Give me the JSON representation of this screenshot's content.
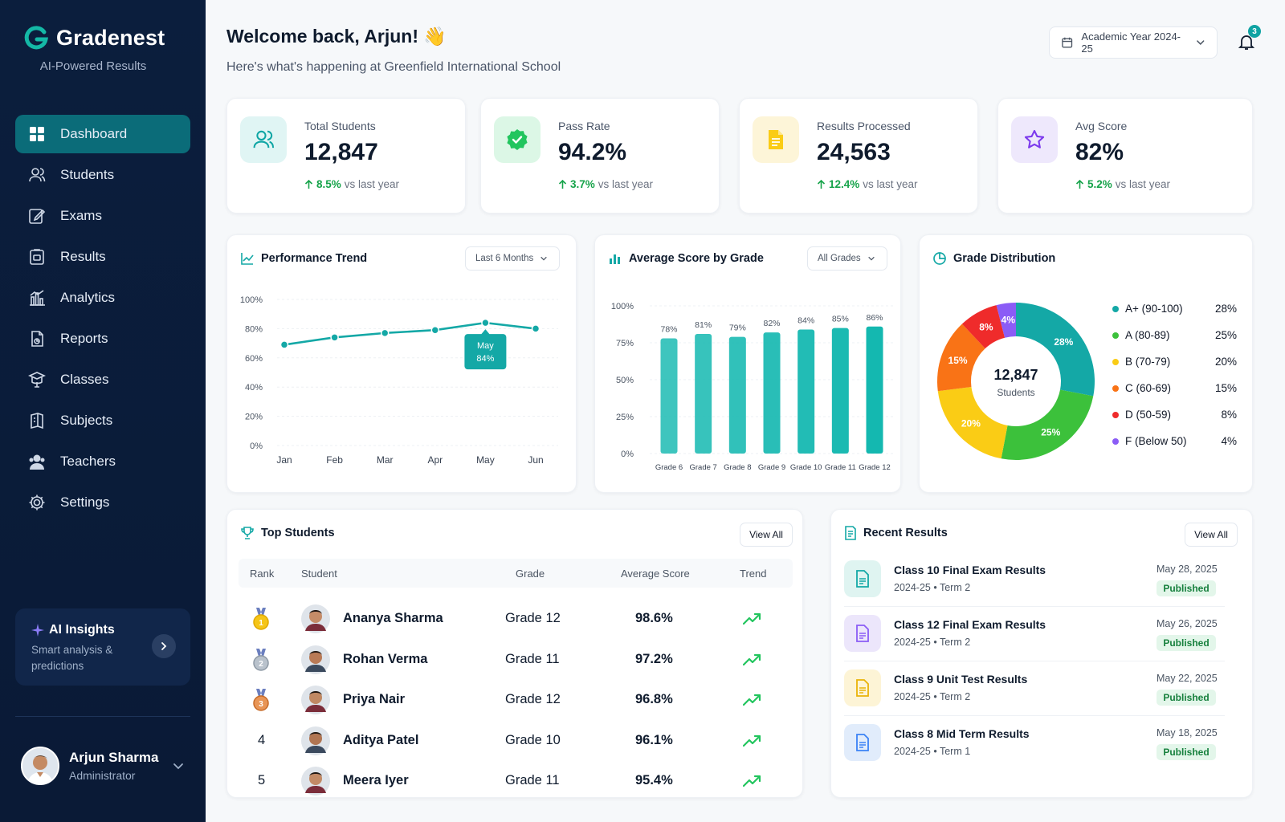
{
  "brand": {
    "name": "Gradenest",
    "tagline": "AI-Powered Results",
    "logo_icon": "g-logo-icon",
    "accent": "#14b8a6"
  },
  "nav": [
    {
      "label": "Dashboard",
      "icon": "grid-icon",
      "active": true
    },
    {
      "label": "Students",
      "icon": "users-icon"
    },
    {
      "label": "Exams",
      "icon": "edit-icon"
    },
    {
      "label": "Results",
      "icon": "clipboard-icon"
    },
    {
      "label": "Analytics",
      "icon": "bar-chart-icon"
    },
    {
      "label": "Reports",
      "icon": "report-icon"
    },
    {
      "label": "Classes",
      "icon": "classes-icon"
    },
    {
      "label": "Subjects",
      "icon": "book-icon"
    },
    {
      "label": "Teachers",
      "icon": "teacher-icon"
    },
    {
      "label": "Settings",
      "icon": "gear-icon"
    }
  ],
  "ai_insights": {
    "title": "AI Insights",
    "subtitle": "Smart analysis & predictions"
  },
  "user": {
    "name": "Arjun Sharma",
    "role": "Administrator"
  },
  "header": {
    "welcome": "Welcome back, Arjun! 👋",
    "subtitle": "Here's what's happening at Greenfield International School",
    "year": "Academic Year 2024-25",
    "notifications": "3"
  },
  "stats": [
    {
      "label": "Total Students",
      "value": "12,847",
      "change": "8.5%",
      "suffix": "vs last year",
      "icon": "users-icon",
      "color": "#0ea5a4",
      "bg": "#e0f5f4"
    },
    {
      "label": "Pass Rate",
      "value": "94.2%",
      "change": "3.7%",
      "suffix": "vs last year",
      "icon": "badge-check-icon",
      "color": "#22c55e",
      "bg": "#dcf7e6"
    },
    {
      "label": "Results Processed",
      "value": "24,563",
      "change": "12.4%",
      "suffix": "vs last year",
      "icon": "document-icon",
      "color": "#eab308",
      "bg": "#fdf5d8"
    },
    {
      "label": "Avg Score",
      "value": "82%",
      "change": "5.2%",
      "suffix": "vs last year",
      "icon": "star-icon",
      "color": "#7c3aed",
      "bg": "#eee8fc"
    }
  ],
  "performance": {
    "title": "Performance Trend",
    "filter": "Last 6 Months",
    "tooltip_month": "May",
    "tooltip_value": "84%"
  },
  "avg_grade": {
    "title": "Average Score by Grade",
    "filter": "All Grades"
  },
  "distribution": {
    "title": "Grade Distribution",
    "center_value": "12,847",
    "center_label": "Students"
  },
  "chart_data": [
    {
      "type": "line",
      "title": "Performance Trend",
      "x": [
        "Jan",
        "Feb",
        "Mar",
        "Apr",
        "May",
        "Jun"
      ],
      "y": [
        69,
        74,
        77,
        79,
        84,
        80
      ],
      "yticks": [
        "0%",
        "20%",
        "40%",
        "60%",
        "80%",
        "100%"
      ],
      "ylim": [
        0,
        100
      ],
      "color": "#14a8a6",
      "grid": true
    },
    {
      "type": "bar",
      "title": "Average Score by Grade",
      "categories": [
        "Grade 6",
        "Grade 7",
        "Grade 8",
        "Grade 9",
        "Grade 10",
        "Grade 11",
        "Grade 12"
      ],
      "values": [
        78,
        81,
        79,
        82,
        84,
        85,
        86
      ],
      "labels": [
        "78%",
        "81%",
        "79%",
        "82%",
        "84%",
        "85%",
        "86%"
      ],
      "yticks": [
        "0%",
        "25%",
        "50%",
        "75%",
        "100%"
      ],
      "ylim": [
        0,
        100
      ],
      "color": "#14b8b0",
      "grid": true
    },
    {
      "type": "pie",
      "title": "Grade Distribution",
      "labels": [
        "A+ (90-100)",
        "A (80-89)",
        "B (70-79)",
        "C (60-69)",
        "D (50-59)",
        "F (Below 50)"
      ],
      "values": [
        28,
        25,
        20,
        15,
        8,
        4
      ],
      "value_labels": [
        "28%",
        "25%",
        "20%",
        "15%",
        "8%",
        "4%"
      ],
      "colors": [
        "#14a8a6",
        "#3cc13b",
        "#facc15",
        "#f97316",
        "#ef2b2b",
        "#8b5cf6"
      ],
      "legend": "right"
    }
  ],
  "top_students": {
    "title": "Top Students",
    "view_all": "View All",
    "columns": [
      "Rank",
      "Student",
      "Grade",
      "Average Score",
      "Trend"
    ],
    "rows": [
      {
        "rank": "1",
        "medal": "gold-medal-icon",
        "name": "Ananya Sharma",
        "grade": "Grade 12",
        "score": "98.6%"
      },
      {
        "rank": "2",
        "medal": "silver-medal-icon",
        "name": "Rohan Verma",
        "grade": "Grade 11",
        "score": "97.2%"
      },
      {
        "rank": "3",
        "medal": "bronze-medal-icon",
        "name": "Priya Nair",
        "grade": "Grade 12",
        "score": "96.8%"
      },
      {
        "rank": "4",
        "medal": "",
        "name": "Aditya Patel",
        "grade": "Grade 10",
        "score": "96.1%"
      },
      {
        "rank": "5",
        "medal": "",
        "name": "Meera Iyer",
        "grade": "Grade 11",
        "score": "95.4%"
      }
    ]
  },
  "recent_results": {
    "title": "Recent Results",
    "view_all": "View All",
    "items": [
      {
        "title": "Class 10 Final Exam Results",
        "sub": "2024-25 • Term 2",
        "date": "May 28, 2025",
        "status": "Published",
        "color": "#14a8a6",
        "bg": "#dff4f1"
      },
      {
        "title": "Class 12 Final Exam Results",
        "sub": "2024-25 • Term 2",
        "date": "May 26, 2025",
        "status": "Published",
        "color": "#8b5cf6",
        "bg": "#ece6fb"
      },
      {
        "title": "Class 9 Unit Test Results",
        "sub": "2024-25 • Term 2",
        "date": "May 22, 2025",
        "status": "Published",
        "color": "#eab308",
        "bg": "#fdf4d6"
      },
      {
        "title": "Class 8 Mid Term Results",
        "sub": "2024-25 • Term 1",
        "date": "May 18, 2025",
        "status": "Published",
        "color": "#3b82f6",
        "bg": "#e1ecfb"
      }
    ]
  }
}
